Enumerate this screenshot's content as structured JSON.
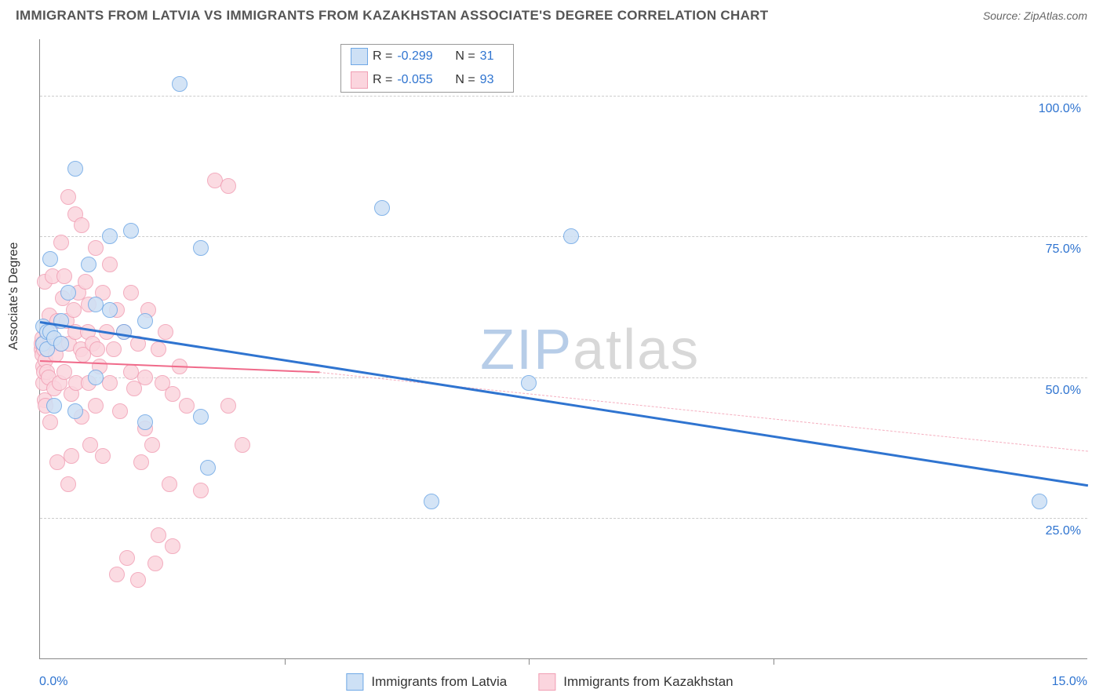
{
  "title": "IMMIGRANTS FROM LATVIA VS IMMIGRANTS FROM KAZAKHSTAN ASSOCIATE'S DEGREE CORRELATION CHART",
  "source_label": "Source: ZipAtlas.com",
  "ylabel": "Associate's Degree",
  "watermark": {
    "text": "ZIPatlas",
    "color_zip": "#b7cde8",
    "color_atlas": "#d8d8d8"
  },
  "axes": {
    "xlim": [
      0,
      15
    ],
    "ylim": [
      0,
      110
    ],
    "yticks": [
      {
        "v": 25,
        "label": "25.0%"
      },
      {
        "v": 50,
        "label": "50.0%"
      },
      {
        "v": 75,
        "label": "75.0%"
      },
      {
        "v": 100,
        "label": "100.0%"
      }
    ],
    "xticks_inner": [
      3.5,
      7.0,
      10.5
    ],
    "xtick_left": {
      "v": 0,
      "label": "0.0%"
    },
    "xtick_right": {
      "v": 15,
      "label": "15.0%"
    },
    "tick_label_color": "#2f74d0",
    "grid_color": "#cccccc"
  },
  "series": {
    "latvia": {
      "label": "Immigrants from Latvia",
      "fill": "#cde0f5",
      "stroke": "#6fa8e6",
      "radius": 10,
      "R_label": "R =",
      "R_value": "-0.299",
      "N_label": "N =",
      "N_value": "31",
      "trend": {
        "x1": 0,
        "y1": 60,
        "x2": 15,
        "y2": 31,
        "color": "#2f74d0",
        "width": 3,
        "dashed": false
      },
      "points": [
        [
          0.05,
          56
        ],
        [
          0.05,
          59
        ],
        [
          0.1,
          58
        ],
        [
          0.1,
          55
        ],
        [
          0.15,
          58
        ],
        [
          0.15,
          71
        ],
        [
          0.2,
          57
        ],
        [
          0.2,
          45
        ],
        [
          0.3,
          56
        ],
        [
          0.3,
          60
        ],
        [
          0.4,
          65
        ],
        [
          0.5,
          87
        ],
        [
          0.5,
          44
        ],
        [
          0.7,
          70
        ],
        [
          0.8,
          63
        ],
        [
          0.8,
          50
        ],
        [
          1.0,
          75
        ],
        [
          1.0,
          62
        ],
        [
          1.2,
          58
        ],
        [
          1.3,
          76
        ],
        [
          1.5,
          60
        ],
        [
          1.5,
          42
        ],
        [
          2.0,
          102
        ],
        [
          2.3,
          73
        ],
        [
          2.3,
          43
        ],
        [
          2.4,
          34
        ],
        [
          4.9,
          80
        ],
        [
          5.6,
          28
        ],
        [
          7.0,
          49
        ],
        [
          7.6,
          75
        ],
        [
          14.3,
          28
        ]
      ]
    },
    "kazakhstan": {
      "label": "Immigrants from Kazakhstan",
      "fill": "#fbd5de",
      "stroke": "#f19fb4",
      "radius": 10,
      "R_label": "R =",
      "R_value": "-0.055",
      "N_label": "N =",
      "N_value": "93",
      "trend_solid": {
        "x1": 0,
        "y1": 53,
        "x2": 4.0,
        "y2": 51,
        "color": "#f06a8a",
        "width": 2.5,
        "dashed": false
      },
      "trend_dashed": {
        "x1": 4.0,
        "y1": 51,
        "x2": 15,
        "y2": 37,
        "color": "#f5aebf",
        "width": 1.5,
        "dashed": true
      },
      "points": [
        [
          0.02,
          55
        ],
        [
          0.02,
          56
        ],
        [
          0.03,
          54
        ],
        [
          0.03,
          57
        ],
        [
          0.04,
          52
        ],
        [
          0.05,
          56
        ],
        [
          0.05,
          49
        ],
        [
          0.06,
          51
        ],
        [
          0.06,
          55
        ],
        [
          0.07,
          46
        ],
        [
          0.07,
          67
        ],
        [
          0.08,
          53
        ],
        [
          0.08,
          45
        ],
        [
          0.1,
          55
        ],
        [
          0.1,
          58
        ],
        [
          0.1,
          51
        ],
        [
          0.12,
          50
        ],
        [
          0.14,
          61
        ],
        [
          0.15,
          42
        ],
        [
          0.15,
          57
        ],
        [
          0.18,
          68
        ],
        [
          0.2,
          56
        ],
        [
          0.2,
          48
        ],
        [
          0.22,
          54
        ],
        [
          0.25,
          60
        ],
        [
          0.25,
          35
        ],
        [
          0.28,
          49
        ],
        [
          0.3,
          74
        ],
        [
          0.3,
          56
        ],
        [
          0.32,
          64
        ],
        [
          0.35,
          68
        ],
        [
          0.35,
          51
        ],
        [
          0.38,
          60
        ],
        [
          0.4,
          82
        ],
        [
          0.4,
          31
        ],
        [
          0.42,
          56
        ],
        [
          0.45,
          47
        ],
        [
          0.45,
          36
        ],
        [
          0.48,
          62
        ],
        [
          0.5,
          79
        ],
        [
          0.5,
          58
        ],
        [
          0.52,
          49
        ],
        [
          0.55,
          65
        ],
        [
          0.58,
          55
        ],
        [
          0.6,
          77
        ],
        [
          0.6,
          43
        ],
        [
          0.62,
          54
        ],
        [
          0.65,
          67
        ],
        [
          0.68,
          58
        ],
        [
          0.7,
          49
        ],
        [
          0.7,
          63
        ],
        [
          0.72,
          38
        ],
        [
          0.75,
          56
        ],
        [
          0.8,
          73
        ],
        [
          0.8,
          45
        ],
        [
          0.82,
          55
        ],
        [
          0.85,
          52
        ],
        [
          0.9,
          65
        ],
        [
          0.9,
          36
        ],
        [
          0.95,
          58
        ],
        [
          1.0,
          49
        ],
        [
          1.0,
          70
        ],
        [
          1.05,
          55
        ],
        [
          1.1,
          15
        ],
        [
          1.1,
          62
        ],
        [
          1.15,
          44
        ],
        [
          1.2,
          58
        ],
        [
          1.25,
          18
        ],
        [
          1.3,
          51
        ],
        [
          1.3,
          65
        ],
        [
          1.35,
          48
        ],
        [
          1.4,
          14
        ],
        [
          1.4,
          56
        ],
        [
          1.45,
          35
        ],
        [
          1.5,
          50
        ],
        [
          1.5,
          41
        ],
        [
          1.55,
          62
        ],
        [
          1.6,
          38
        ],
        [
          1.65,
          17
        ],
        [
          1.7,
          55
        ],
        [
          1.7,
          22
        ],
        [
          1.75,
          49
        ],
        [
          1.8,
          58
        ],
        [
          1.85,
          31
        ],
        [
          1.9,
          47
        ],
        [
          1.9,
          20
        ],
        [
          2.0,
          52
        ],
        [
          2.1,
          45
        ],
        [
          2.3,
          30
        ],
        [
          2.5,
          85
        ],
        [
          2.7,
          84
        ],
        [
          2.7,
          45
        ],
        [
          2.9,
          38
        ]
      ]
    }
  },
  "legend_top": {
    "value_color": "#2f74d0",
    "label_color": "#333333"
  },
  "legend_bottom": {
    "text_color": "#333333"
  }
}
